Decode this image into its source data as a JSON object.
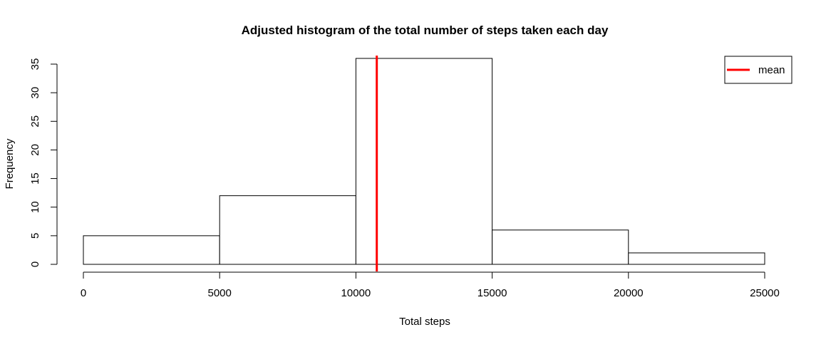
{
  "chart_data": {
    "type": "bar",
    "title": "Adjusted histogram of the total number of steps taken each day",
    "xlabel": "Total steps",
    "ylabel": "Frequency",
    "bins": [
      {
        "x0": 0,
        "x1": 5000,
        "count": 5
      },
      {
        "x0": 5000,
        "x1": 10000,
        "count": 12
      },
      {
        "x0": 10000,
        "x1": 15000,
        "count": 36
      },
      {
        "x0": 15000,
        "x1": 20000,
        "count": 6
      },
      {
        "x0": 20000,
        "x1": 25000,
        "count": 2
      }
    ],
    "xlim": [
      0,
      25000
    ],
    "ylim": [
      0,
      35
    ],
    "x_ticks": [
      0,
      5000,
      10000,
      15000,
      20000,
      25000
    ],
    "y_ticks": [
      0,
      5,
      10,
      15,
      20,
      25,
      30,
      35
    ],
    "mean": 10766,
    "legend": {
      "label": "mean",
      "position": "top-right"
    },
    "colors": {
      "bar_fill": "#ffffff",
      "bar_stroke": "#000000",
      "mean_line": "#ff0000"
    },
    "grid": false
  }
}
